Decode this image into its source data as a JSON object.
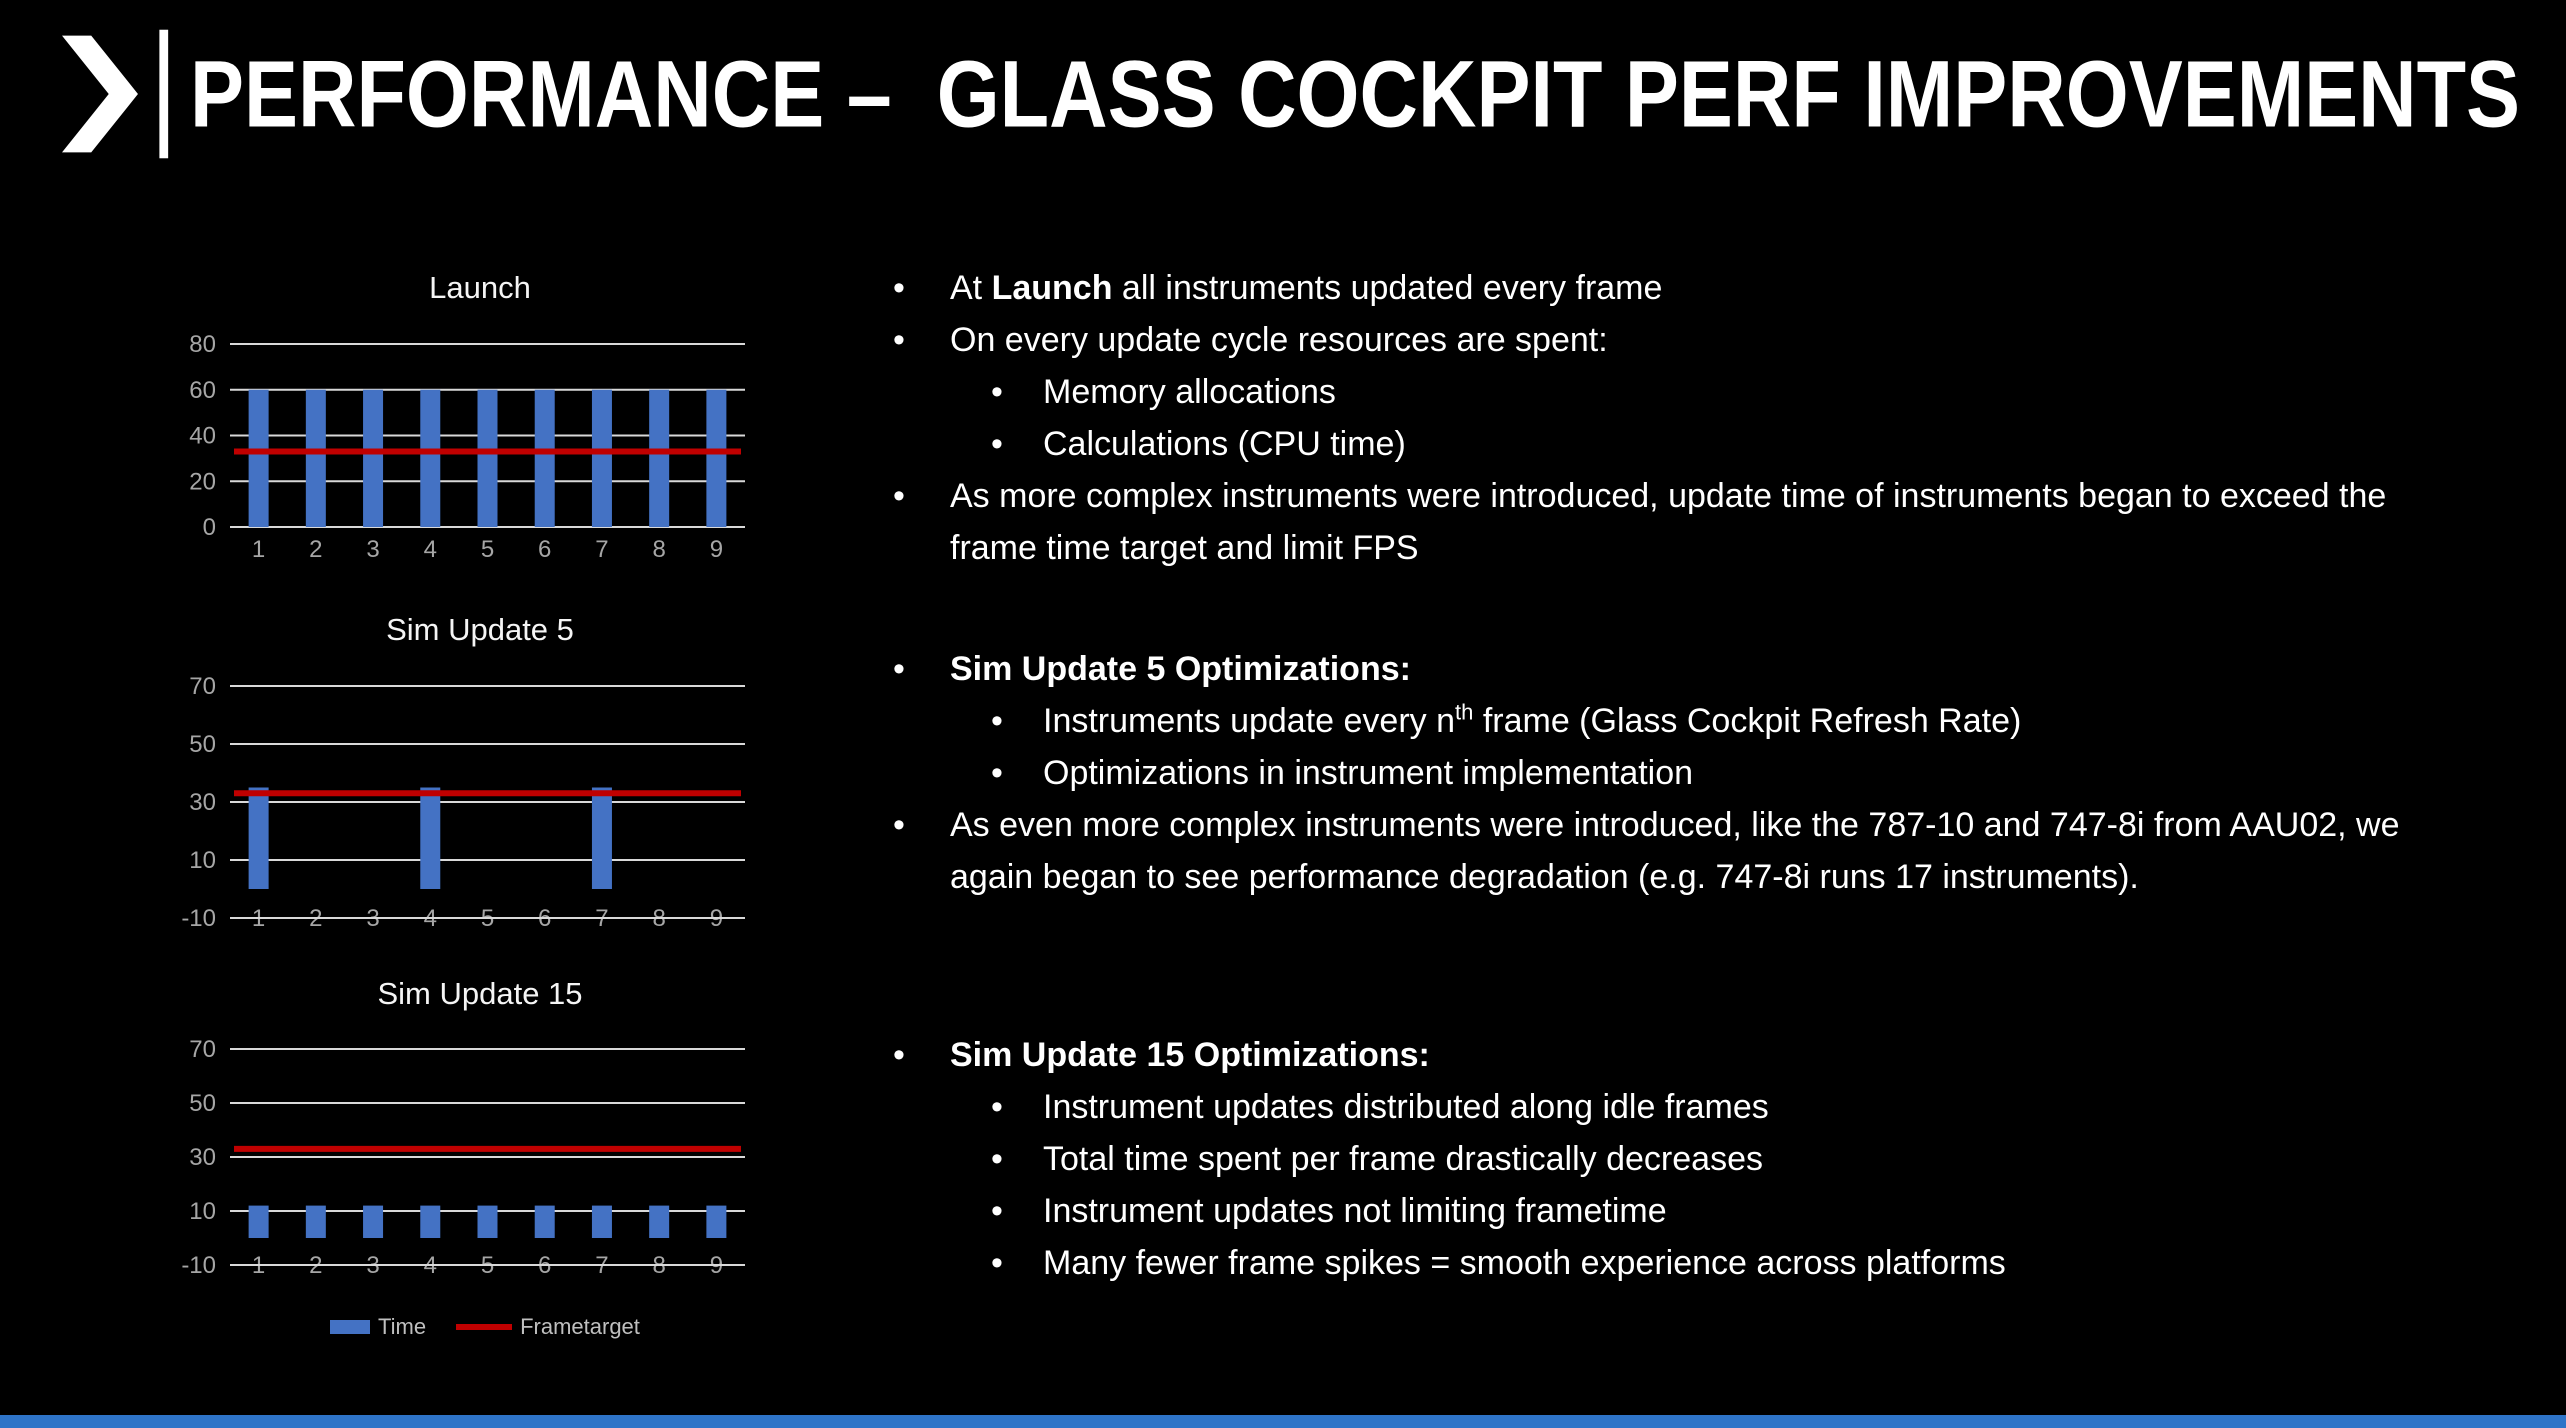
{
  "slide": {
    "title": "PERFORMANCE –  GLASS COCKPIT PERF IMPROVEMENTS"
  },
  "colors": {
    "background": "#000000",
    "text": "#FFFFFF",
    "bar": "#4472C4",
    "target_line": "#C00000",
    "gridline": "#D9D9D9",
    "axis_text": "#A6A6A6",
    "legend_text": "#BFBFBF",
    "bottom_bar": "#2E74C8"
  },
  "content": {
    "bullet": "•",
    "b1_pre": "At ",
    "b1_bold": "Launch",
    "b1_post": " all instruments updated every frame",
    "b2": "On every update cycle resources are spent:",
    "b2_sub1": "Memory allocations",
    "b2_sub2": "Calculations (CPU time)",
    "b3": "As more complex instruments were introduced, update time of instruments began to exceed the frame time target and limit FPS",
    "b4_bold": "Sim Update 5 Optimizations:",
    "b4_sub1_pre": "Instruments update every n",
    "b4_sub1_sup": "th",
    "b4_sub1_post": " frame (Glass Cockpit Refresh Rate)",
    "b4_sub2": "Optimizations in instrument implementation",
    "b5": "As even more complex instruments were introduced, like the 787-10 and 747-8i from AAU02, we again began to see performance degradation (e.g. 747-8i runs 17 instruments).",
    "b6_bold": "Sim Update 15 Optimizations:",
    "b6_sub1": "Instrument updates distributed along idle frames",
    "b6_sub2": "Total time spent per frame drastically decreases",
    "b6_sub3": "Instrument updates not limiting frametime",
    "b6_sub4": "Many fewer frame spikes = smooth experience across platforms"
  },
  "legend": {
    "items": [
      {
        "label": "Time",
        "type": "bar",
        "color": "#4472C4"
      },
      {
        "label": "Frametarget",
        "type": "line",
        "color": "#C00000"
      }
    ]
  },
  "chart_data": [
    {
      "type": "bar",
      "title": "Launch",
      "categories": [
        "1",
        "2",
        "3",
        "4",
        "5",
        "6",
        "7",
        "8",
        "9"
      ],
      "series": [
        {
          "name": "Time",
          "type": "bar",
          "values": [
            60,
            60,
            60,
            60,
            60,
            60,
            60,
            60,
            60
          ]
        },
        {
          "name": "Frametarget",
          "type": "line",
          "values": [
            33,
            33,
            33,
            33,
            33,
            33,
            33,
            33,
            33
          ]
        }
      ],
      "ylim": [
        0,
        80
      ],
      "yticks": [
        0,
        20,
        40,
        60,
        80
      ],
      "grid": true,
      "legend_position": "none"
    },
    {
      "type": "bar",
      "title": "Sim Update 5",
      "categories": [
        "1",
        "2",
        "3",
        "4",
        "5",
        "6",
        "7",
        "8",
        "9"
      ],
      "series": [
        {
          "name": "Time",
          "type": "bar",
          "values": [
            35,
            0,
            0,
            35,
            0,
            0,
            35,
            0,
            0
          ]
        },
        {
          "name": "Frametarget",
          "type": "line",
          "values": [
            33,
            33,
            33,
            33,
            33,
            33,
            33,
            33,
            33
          ]
        }
      ],
      "ylim": [
        -10,
        70
      ],
      "yticks": [
        -10,
        10,
        30,
        50,
        70
      ],
      "grid": true,
      "legend_position": "none"
    },
    {
      "type": "bar",
      "title": "Sim Update 15",
      "categories": [
        "1",
        "2",
        "3",
        "4",
        "5",
        "6",
        "7",
        "8",
        "9"
      ],
      "series": [
        {
          "name": "Time",
          "type": "bar",
          "values": [
            12,
            12,
            12,
            12,
            12,
            12,
            12,
            12,
            12
          ]
        },
        {
          "name": "Frametarget",
          "type": "line",
          "values": [
            33,
            33,
            33,
            33,
            33,
            33,
            33,
            33,
            33
          ]
        }
      ],
      "ylim": [
        -10,
        70
      ],
      "yticks": [
        -10,
        10,
        30,
        50,
        70
      ],
      "grid": true,
      "legend_position": "bottom"
    }
  ]
}
